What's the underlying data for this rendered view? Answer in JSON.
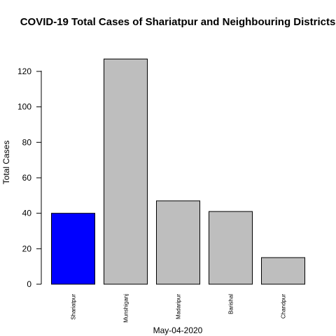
{
  "chart_data": {
    "type": "bar",
    "title": "COVID-19 Total Cases of Shariatpur and Neighbouring Districts",
    "xlabel": "May-04-2020",
    "ylabel": "Total Cases",
    "categories": [
      "Shariatpur",
      "Munshiganj",
      "Madaripur",
      "Barishal",
      "Chandpur"
    ],
    "values": [
      40,
      127,
      47,
      41,
      15
    ],
    "colors": [
      "#0000ff",
      "#bebebe",
      "#bebebe",
      "#bebebe",
      "#bebebe"
    ],
    "yticks": [
      0,
      20,
      40,
      60,
      80,
      100,
      120
    ],
    "ylim": [
      0,
      130
    ],
    "grid": false,
    "legend": "none"
  }
}
